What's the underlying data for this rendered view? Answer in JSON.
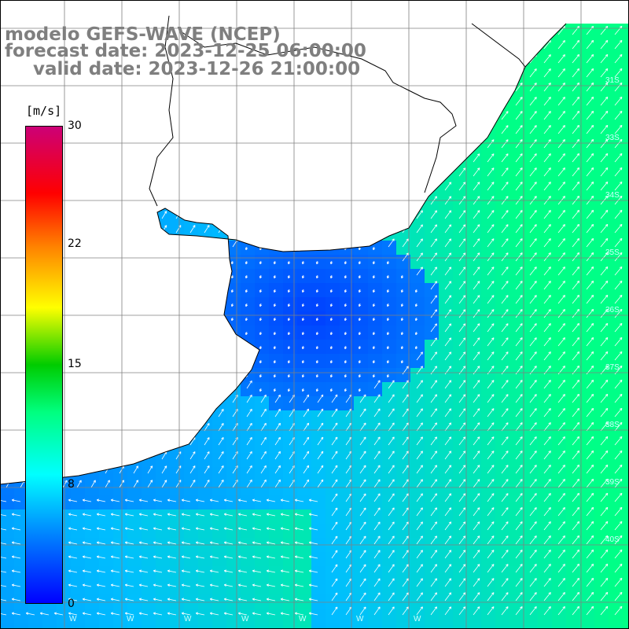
{
  "header": {
    "line1": "modelo GEFS-WAVE (NCEP)",
    "line2": "forecast date: 2023-12-25 06:00:00",
    "line3": "valid date: 2023-12-26 21:00:00"
  },
  "colorbar": {
    "unit": "[m/s]",
    "ticks": [
      "30",
      "22",
      "15",
      "8",
      "0"
    ],
    "tick_values": [
      30,
      22,
      15,
      8,
      0
    ],
    "range": [
      0,
      30
    ],
    "colors": [
      "#0000ff",
      "#00aaff",
      "#00ffff",
      "#00ff80",
      "#00cc00",
      "#ffff00",
      "#ff8000",
      "#ff0000",
      "#cc0066"
    ]
  },
  "map": {
    "region": "Rio de la Plata / Uruguay / South Brazil coast",
    "variable": "wind speed and direction",
    "land_color": "#ffffff",
    "grid_color": "#808080",
    "coast_color": "#000000",
    "lat_labels": [
      "31S",
      "33S",
      "34S",
      "35S",
      "36S",
      "37S",
      "38S",
      "39S",
      "40S"
    ],
    "lon_labels": [
      "W",
      "W",
      "W",
      "W",
      "W",
      "W",
      "W"
    ]
  }
}
